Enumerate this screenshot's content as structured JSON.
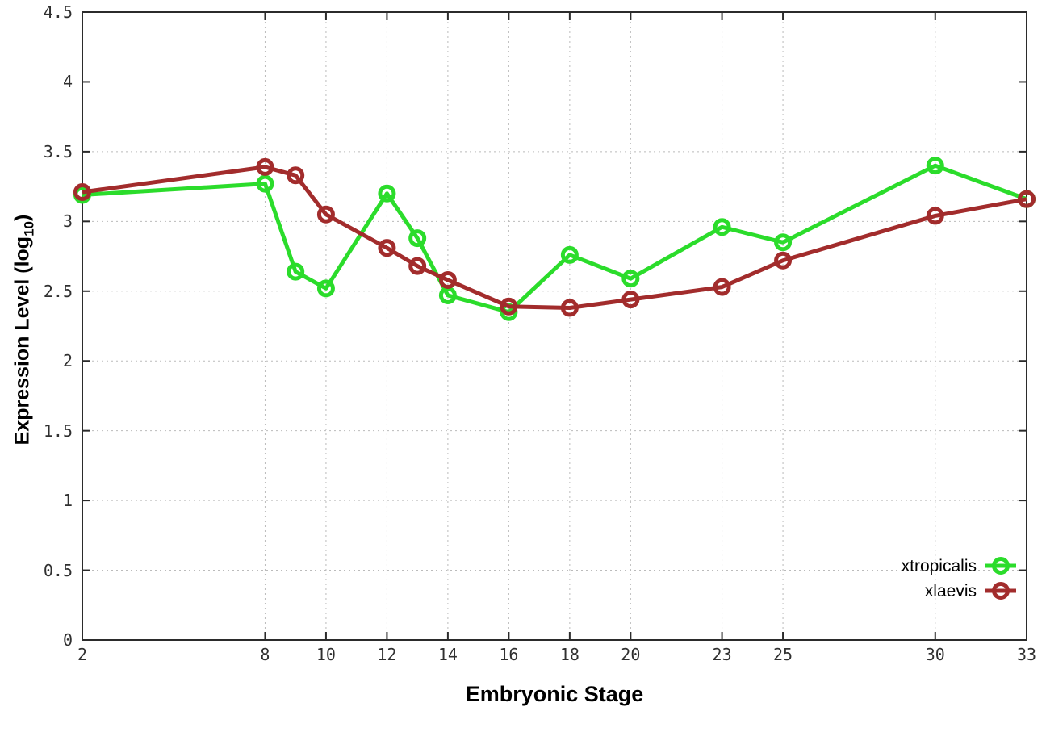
{
  "chart_data": {
    "type": "line",
    "title": "",
    "xlabel": "Embryonic Stage",
    "ylabel": "Expression Level (log10)",
    "ylabel_base": "Expression Level (log",
    "ylabel_sub": "10",
    "ylabel_close": ")",
    "x": [
      2,
      8,
      9,
      10,
      12,
      13,
      14,
      16,
      18,
      20,
      23,
      25,
      30,
      33
    ],
    "series": [
      {
        "name": "xtropicalis",
        "color": "#2bdc2b",
        "values": [
          3.19,
          3.27,
          2.64,
          2.52,
          3.2,
          2.88,
          2.47,
          2.35,
          2.76,
          2.59,
          2.96,
          2.85,
          3.4,
          3.16
        ]
      },
      {
        "name": "xlaevis",
        "color": "#a22c2c",
        "values": [
          3.21,
          3.39,
          3.33,
          3.05,
          2.81,
          2.68,
          2.58,
          2.39,
          2.38,
          2.44,
          2.53,
          2.72,
          3.04,
          3.16
        ]
      }
    ],
    "xlim": [
      2,
      33
    ],
    "ylim": [
      0,
      4.5
    ],
    "xticks": [
      2,
      8,
      10,
      12,
      14,
      16,
      18,
      20,
      23,
      25,
      30,
      33
    ],
    "yticks": [
      0,
      0.5,
      1,
      1.5,
      2,
      2.5,
      3,
      3.5,
      4,
      4.5
    ],
    "grid": true,
    "legend_position": "bottom-right",
    "legend": [
      {
        "label": "xtropicalis"
      },
      {
        "label": "xlaevis"
      }
    ]
  },
  "style": {
    "border_color": "#2b2b2b",
    "grid_color": "#bbbbbb",
    "tick_text_color": "#303030",
    "background": "#ffffff"
  }
}
